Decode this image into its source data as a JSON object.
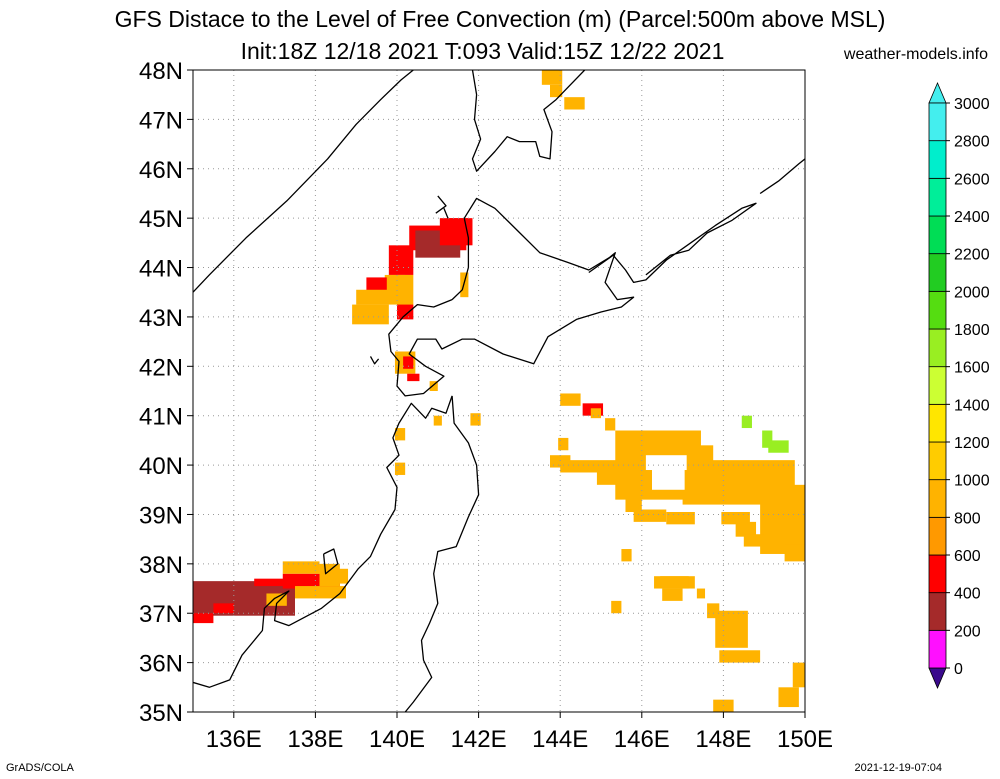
{
  "title": "GFS Distace to the Level of Free Convection (m) (Parcel:500m above MSL)",
  "subtitle": "Init:18Z 12/18 2021 T:093 Valid:15Z 12/22 2021",
  "site": "weather-models.info",
  "credit": "GrADS/COLA",
  "timestamp": "2021-12-19-07:04",
  "map": {
    "lon_range": [
      135,
      150
    ],
    "lat_range": [
      35,
      48
    ],
    "lon_ticks": [
      136,
      138,
      140,
      142,
      144,
      146,
      148,
      150
    ],
    "lat_ticks": [
      35,
      36,
      37,
      38,
      39,
      40,
      41,
      42,
      43,
      44,
      45,
      46,
      47,
      48
    ],
    "lon_labels": [
      "136E",
      "138E",
      "140E",
      "142E",
      "144E",
      "146E",
      "148E",
      "150E"
    ],
    "lat_labels": [
      "35N",
      "36N",
      "37N",
      "38N",
      "39N",
      "40N",
      "41N",
      "42N",
      "43N",
      "44N",
      "45N",
      "46N",
      "47N",
      "48N"
    ],
    "grid": true
  },
  "legend": {
    "levels": [
      0,
      200,
      400,
      600,
      800,
      1000,
      1200,
      1400,
      1600,
      1800,
      2000,
      2200,
      2400,
      2600,
      2800,
      3000
    ],
    "labels": [
      "0",
      "200",
      "400",
      "600",
      "800",
      "1000",
      "1200",
      "1400",
      "1600",
      "1800",
      "2000",
      "2200",
      "2400",
      "2600",
      "2800",
      "3000"
    ],
    "colors": [
      "#3a0a8c",
      "#ff10ff",
      "#a52a2a",
      "#ff0000",
      "#ff9900",
      "#ffb300",
      "#ffcc00",
      "#ffe600",
      "#ccff33",
      "#99ee22",
      "#55dd11",
      "#22cc22",
      "#00dd55",
      "#00ee99",
      "#00eecc",
      "#44eeee"
    ],
    "placement": "right"
  },
  "cells": [
    {
      "lon": 143.55,
      "lat": 47.7,
      "w": 0.5,
      "h": 0.3,
      "color": "#ffb300"
    },
    {
      "lon": 143.75,
      "lat": 47.45,
      "w": 0.3,
      "h": 0.25,
      "color": "#ffb300"
    },
    {
      "lon": 144.1,
      "lat": 47.2,
      "w": 0.5,
      "h": 0.25,
      "color": "#ffb300"
    },
    {
      "lon": 140.3,
      "lat": 44.35,
      "w": 1.4,
      "h": 0.5,
      "color": "#ff0000"
    },
    {
      "lon": 140.45,
      "lat": 44.2,
      "w": 1.1,
      "h": 0.55,
      "color": "#a52a2a"
    },
    {
      "lon": 141.05,
      "lat": 44.45,
      "w": 0.8,
      "h": 0.55,
      "color": "#ff0000"
    },
    {
      "lon": 141.25,
      "lat": 44.75,
      "w": 0.5,
      "h": 0.25,
      "color": "#ff0000"
    },
    {
      "lon": 139.8,
      "lat": 43.85,
      "w": 0.6,
      "h": 0.6,
      "color": "#ff0000"
    },
    {
      "lon": 139.7,
      "lat": 43.45,
      "w": 0.5,
      "h": 0.4,
      "color": "#ffb300"
    },
    {
      "lon": 140.0,
      "lat": 43.15,
      "w": 0.4,
      "h": 0.7,
      "color": "#ffb300"
    },
    {
      "lon": 139.25,
      "lat": 43.4,
      "w": 0.5,
      "h": 0.4,
      "color": "#ff0000"
    },
    {
      "lon": 139.0,
      "lat": 43.25,
      "w": 1.1,
      "h": 0.3,
      "color": "#ffb300"
    },
    {
      "lon": 138.9,
      "lat": 42.85,
      "w": 0.9,
      "h": 0.4,
      "color": "#ffb300"
    },
    {
      "lon": 140.0,
      "lat": 42.95,
      "w": 0.4,
      "h": 0.3,
      "color": "#ff0000"
    },
    {
      "lon": 141.55,
      "lat": 43.4,
      "w": 0.2,
      "h": 0.5,
      "color": "#ffb300"
    },
    {
      "lon": 139.95,
      "lat": 41.85,
      "w": 0.5,
      "h": 0.45,
      "color": "#ffb300"
    },
    {
      "lon": 140.15,
      "lat": 41.95,
      "w": 0.25,
      "h": 0.25,
      "color": "#ff0000"
    },
    {
      "lon": 140.25,
      "lat": 41.7,
      "w": 0.3,
      "h": 0.15,
      "color": "#ff0000"
    },
    {
      "lon": 140.8,
      "lat": 41.5,
      "w": 0.2,
      "h": 0.2,
      "color": "#ffb300"
    },
    {
      "lon": 141.8,
      "lat": 40.8,
      "w": 0.25,
      "h": 0.25,
      "color": "#ffb300"
    },
    {
      "lon": 140.9,
      "lat": 40.8,
      "w": 0.2,
      "h": 0.2,
      "color": "#ffb300"
    },
    {
      "lon": 139.95,
      "lat": 40.5,
      "w": 0.25,
      "h": 0.25,
      "color": "#ffb300"
    },
    {
      "lon": 139.95,
      "lat": 39.8,
      "w": 0.25,
      "h": 0.25,
      "color": "#ffb300"
    },
    {
      "lon": 144.0,
      "lat": 41.2,
      "w": 0.5,
      "h": 0.25,
      "color": "#ffb300"
    },
    {
      "lon": 144.55,
      "lat": 41.0,
      "w": 0.5,
      "h": 0.25,
      "color": "#ff0000"
    },
    {
      "lon": 144.75,
      "lat": 40.95,
      "w": 0.25,
      "h": 0.2,
      "color": "#ffb300"
    },
    {
      "lon": 145.1,
      "lat": 40.7,
      "w": 0.25,
      "h": 0.25,
      "color": "#ffb300"
    },
    {
      "lon": 145.35,
      "lat": 39.3,
      "w": 2.1,
      "h": 1.4,
      "color": "#ffb300"
    },
    {
      "lon": 146.95,
      "lat": 39.5,
      "w": 0.8,
      "h": 0.9,
      "color": "#ffb300"
    },
    {
      "lon": 147.0,
      "lat": 39.2,
      "w": 2.75,
      "h": 0.9,
      "color": "#ffb300"
    },
    {
      "lon": 148.9,
      "lat": 38.2,
      "w": 1.1,
      "h": 1.4,
      "color": "#ffb300"
    },
    {
      "lon": 149.5,
      "lat": 38.05,
      "w": 0.5,
      "h": 0.35,
      "color": "#ffb300"
    },
    {
      "lon": 143.75,
      "lat": 39.95,
      "w": 0.5,
      "h": 0.25,
      "color": "#ffb300"
    },
    {
      "lon": 144.0,
      "lat": 39.85,
      "w": 1.4,
      "h": 0.25,
      "color": "#ffb300"
    },
    {
      "lon": 144.9,
      "lat": 39.6,
      "w": 0.5,
      "h": 0.3,
      "color": "#ffb300"
    },
    {
      "lon": 143.95,
      "lat": 40.3,
      "w": 0.25,
      "h": 0.25,
      "color": "#ffb300"
    },
    {
      "lon": 145.6,
      "lat": 39.05,
      "w": 0.4,
      "h": 0.3,
      "color": "#ffb300"
    },
    {
      "lon": 145.8,
      "lat": 38.85,
      "w": 0.8,
      "h": 0.25,
      "color": "#ffb300"
    },
    {
      "lon": 146.6,
      "lat": 38.8,
      "w": 0.7,
      "h": 0.25,
      "color": "#ffb300"
    },
    {
      "lon": 147.95,
      "lat": 38.8,
      "w": 0.7,
      "h": 0.25,
      "color": "#ffb300"
    },
    {
      "lon": 148.3,
      "lat": 38.55,
      "w": 0.5,
      "h": 0.3,
      "color": "#ffb300"
    },
    {
      "lon": 148.5,
      "lat": 38.35,
      "w": 0.5,
      "h": 0.25,
      "color": "#ffb300"
    },
    {
      "lon": 146.25,
      "lat": 39.5,
      "w": 0.8,
      "h": 0.5,
      "color": "#ffffff"
    },
    {
      "lon": 146.1,
      "lat": 39.9,
      "w": 1.0,
      "h": 0.3,
      "color": "#ffffff"
    },
    {
      "lon": 148.45,
      "lat": 40.75,
      "w": 0.25,
      "h": 0.25,
      "color": "#99ee22"
    },
    {
      "lon": 148.95,
      "lat": 40.35,
      "w": 0.25,
      "h": 0.35,
      "color": "#99ee22"
    },
    {
      "lon": 149.1,
      "lat": 40.25,
      "w": 0.5,
      "h": 0.25,
      "color": "#99ee22"
    },
    {
      "lon": 145.5,
      "lat": 38.05,
      "w": 0.25,
      "h": 0.25,
      "color": "#ffb300"
    },
    {
      "lon": 146.3,
      "lat": 37.5,
      "w": 1.0,
      "h": 0.25,
      "color": "#ffb300"
    },
    {
      "lon": 146.5,
      "lat": 37.25,
      "w": 0.5,
      "h": 0.25,
      "color": "#ffb300"
    },
    {
      "lon": 146.45,
      "lat": 37.5,
      "w": 0.7,
      "h": 0.25,
      "color": "#ffb300"
    },
    {
      "lon": 147.35,
      "lat": 37.3,
      "w": 0.2,
      "h": 0.2,
      "color": "#ffb300"
    },
    {
      "lon": 145.25,
      "lat": 37.0,
      "w": 0.25,
      "h": 0.25,
      "color": "#ffb300"
    },
    {
      "lon": 147.6,
      "lat": 36.9,
      "w": 0.3,
      "h": 0.3,
      "color": "#ffb300"
    },
    {
      "lon": 147.8,
      "lat": 36.3,
      "w": 0.8,
      "h": 0.75,
      "color": "#ffb300"
    },
    {
      "lon": 147.9,
      "lat": 36.0,
      "w": 1.0,
      "h": 0.25,
      "color": "#ffb300"
    },
    {
      "lon": 149.7,
      "lat": 35.5,
      "w": 0.3,
      "h": 0.5,
      "color": "#ffb300"
    },
    {
      "lon": 149.35,
      "lat": 35.1,
      "w": 0.5,
      "h": 0.4,
      "color": "#ffb300"
    },
    {
      "lon": 147.75,
      "lat": 35.0,
      "w": 0.5,
      "h": 0.25,
      "color": "#ffb300"
    },
    {
      "lon": 135.0,
      "lat": 36.95,
      "w": 2.5,
      "h": 0.7,
      "color": "#a52a2a"
    },
    {
      "lon": 135.0,
      "lat": 36.8,
      "w": 0.5,
      "h": 0.2,
      "color": "#ff0000"
    },
    {
      "lon": 135.5,
      "lat": 37.0,
      "w": 0.5,
      "h": 0.2,
      "color": "#ff0000"
    },
    {
      "lon": 136.5,
      "lat": 37.55,
      "w": 1.4,
      "h": 0.15,
      "color": "#ff0000"
    },
    {
      "lon": 137.2,
      "lat": 37.5,
      "w": 1.4,
      "h": 0.3,
      "color": "#ff0000"
    },
    {
      "lon": 137.2,
      "lat": 37.8,
      "w": 0.9,
      "h": 0.25,
      "color": "#ffb300"
    },
    {
      "lon": 137.5,
      "lat": 37.3,
      "w": 1.25,
      "h": 0.25,
      "color": "#ffb300"
    },
    {
      "lon": 138.1,
      "lat": 37.55,
      "w": 0.5,
      "h": 0.45,
      "color": "#ffb300"
    },
    {
      "lon": 138.4,
      "lat": 37.6,
      "w": 0.4,
      "h": 0.3,
      "color": "#ffb300"
    },
    {
      "lon": 136.8,
      "lat": 37.15,
      "w": 0.5,
      "h": 0.25,
      "color": "#ffb300"
    }
  ],
  "coast": [
    [
      [
        135.0,
        43.5
      ],
      [
        135.4,
        43.85
      ],
      [
        136.3,
        44.6
      ],
      [
        137.3,
        45.35
      ],
      [
        138.3,
        46.2
      ],
      [
        139.0,
        46.9
      ],
      [
        139.6,
        47.4
      ],
      [
        140.1,
        47.8
      ],
      [
        140.4,
        48.0
      ]
    ],
    [
      [
        141.85,
        48.0
      ],
      [
        141.95,
        47.5
      ],
      [
        141.9,
        47.0
      ],
      [
        142.05,
        46.6
      ],
      [
        141.85,
        46.2
      ],
      [
        141.95,
        45.95
      ],
      [
        142.4,
        46.35
      ],
      [
        142.7,
        46.65
      ],
      [
        143.0,
        46.55
      ],
      [
        143.4,
        46.55
      ],
      [
        143.5,
        46.25
      ],
      [
        143.75,
        46.2
      ],
      [
        143.8,
        46.75
      ],
      [
        143.6,
        47.2
      ],
      [
        143.9,
        47.4
      ],
      [
        144.6,
        48.0
      ]
    ],
    [
      [
        141.35,
        43.35
      ],
      [
        141.6,
        43.55
      ],
      [
        141.75,
        44.0
      ],
      [
        141.75,
        44.6
      ],
      [
        141.65,
        45.0
      ],
      [
        141.95,
        45.4
      ],
      [
        142.4,
        45.2
      ],
      [
        142.95,
        44.75
      ],
      [
        143.5,
        44.3
      ],
      [
        144.2,
        44.1
      ],
      [
        144.7,
        43.95
      ],
      [
        145.2,
        44.2
      ],
      [
        145.35,
        44.3
      ],
      [
        145.1,
        43.7
      ],
      [
        145.4,
        43.35
      ],
      [
        145.8,
        43.4
      ],
      [
        145.5,
        43.2
      ],
      [
        145.0,
        43.1
      ],
      [
        144.4,
        42.95
      ],
      [
        143.7,
        42.6
      ],
      [
        143.35,
        42.05
      ],
      [
        142.6,
        42.25
      ],
      [
        141.9,
        42.55
      ],
      [
        141.6,
        42.55
      ],
      [
        141.1,
        42.35
      ],
      [
        140.95,
        42.55
      ],
      [
        140.5,
        42.55
      ],
      [
        140.3,
        42.25
      ],
      [
        140.7,
        42.0
      ],
      [
        141.15,
        41.8
      ],
      [
        140.65,
        41.45
      ],
      [
        140.2,
        41.4
      ],
      [
        140.0,
        41.6
      ],
      [
        140.05,
        42.1
      ],
      [
        139.85,
        42.3
      ],
      [
        139.8,
        42.65
      ],
      [
        140.15,
        43.0
      ],
      [
        140.5,
        43.25
      ],
      [
        140.9,
        43.2
      ],
      [
        141.35,
        43.35
      ]
    ],
    [
      [
        141.35,
        41.4
      ],
      [
        141.2,
        41.05
      ],
      [
        140.85,
        41.15
      ],
      [
        140.7,
        40.95
      ],
      [
        140.35,
        41.25
      ],
      [
        140.05,
        40.85
      ],
      [
        139.9,
        40.55
      ],
      [
        140.05,
        40.2
      ],
      [
        139.75,
        39.95
      ],
      [
        140.0,
        39.55
      ],
      [
        139.95,
        39.1
      ],
      [
        139.6,
        38.6
      ],
      [
        139.35,
        38.15
      ],
      [
        139.05,
        37.9
      ],
      [
        138.6,
        37.4
      ],
      [
        138.15,
        37.1
      ],
      [
        137.35,
        36.75
      ],
      [
        137.0,
        36.85
      ],
      [
        137.05,
        37.2
      ],
      [
        137.35,
        37.45
      ],
      [
        137.0,
        37.3
      ],
      [
        136.75,
        37.1
      ],
      [
        136.7,
        36.65
      ],
      [
        136.2,
        36.15
      ],
      [
        135.9,
        35.65
      ],
      [
        135.4,
        35.5
      ],
      [
        135.0,
        35.6
      ]
    ],
    [
      [
        141.35,
        41.4
      ],
      [
        141.4,
        40.85
      ],
      [
        141.75,
        40.45
      ],
      [
        141.95,
        40.0
      ],
      [
        142.0,
        39.4
      ],
      [
        141.75,
        38.95
      ],
      [
        141.45,
        38.35
      ],
      [
        141.0,
        38.25
      ],
      [
        140.9,
        37.8
      ],
      [
        141.0,
        37.2
      ],
      [
        140.8,
        36.8
      ],
      [
        140.6,
        36.45
      ],
      [
        140.65,
        36.05
      ],
      [
        140.85,
        35.7
      ],
      [
        140.4,
        35.2
      ],
      [
        140.2,
        35.0
      ]
    ],
    [
      [
        144.7,
        43.9
      ],
      [
        145.3,
        44.25
      ],
      [
        145.6,
        43.95
      ],
      [
        145.8,
        43.7
      ],
      [
        146.1,
        43.75
      ],
      [
        146.6,
        44.15
      ],
      [
        147.2,
        44.5
      ],
      [
        147.8,
        44.85
      ],
      [
        148.45,
        45.2
      ],
      [
        148.8,
        45.3
      ],
      [
        148.2,
        44.95
      ],
      [
        147.6,
        44.7
      ],
      [
        147.15,
        44.35
      ],
      [
        146.7,
        44.25
      ],
      [
        146.1,
        43.85
      ]
    ],
    [
      [
        148.9,
        45.5
      ],
      [
        149.35,
        45.75
      ],
      [
        149.85,
        46.1
      ],
      [
        150.0,
        46.2
      ]
    ],
    [
      [
        138.2,
        38.2
      ],
      [
        138.45,
        38.3
      ],
      [
        138.55,
        38.0
      ],
      [
        138.25,
        37.8
      ],
      [
        138.2,
        38.2
      ]
    ],
    [
      [
        139.35,
        42.2
      ],
      [
        139.45,
        42.05
      ],
      [
        139.55,
        42.15
      ]
    ],
    [
      [
        141.0,
        45.45
      ],
      [
        141.2,
        45.25
      ],
      [
        140.95,
        45.1
      ]
    ],
    [
      [
        141.15,
        45.2
      ],
      [
        141.25,
        45.0
      ]
    ]
  ]
}
